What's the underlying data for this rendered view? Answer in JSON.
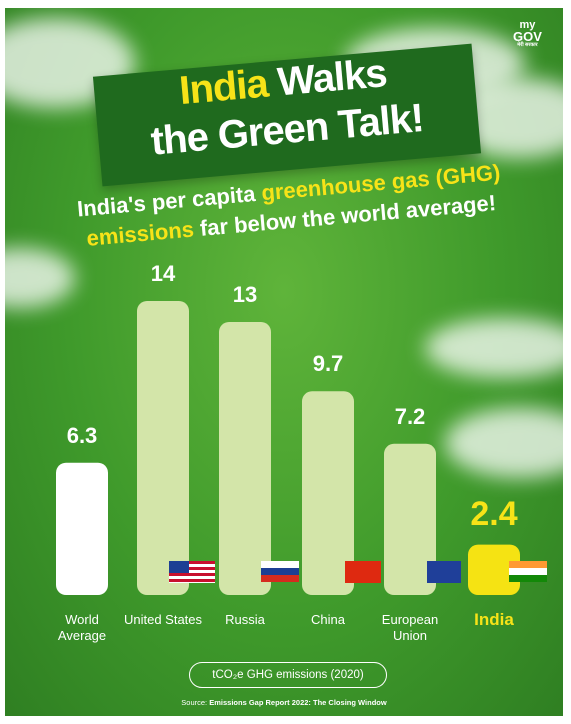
{
  "logo": [
    "my",
    "GOV",
    "मेरी सरकार"
  ],
  "chart_data": {
    "type": "bar",
    "title": [
      "India",
      "Walks",
      "the Green Talk!"
    ],
    "subtitle": [
      "India's per capita",
      "greenhouse gas (GHG)",
      "emissions",
      "far below the world average!"
    ],
    "categories": [
      "World Average",
      "United States",
      "Russia",
      "China",
      "European Union",
      "India"
    ],
    "values": [
      6.3,
      14,
      13,
      9.7,
      7.2,
      2.4
    ],
    "colors": [
      "#ffffff",
      "#d3e5a9",
      "#d3e5a9",
      "#d3e5a9",
      "#d3e5a9",
      "#f5e313"
    ],
    "unit_label": "tCO₂e GHG emissions (2020)",
    "source_label": "Source:",
    "source": "Emissions Gap Report 2022: The Closing Window"
  }
}
